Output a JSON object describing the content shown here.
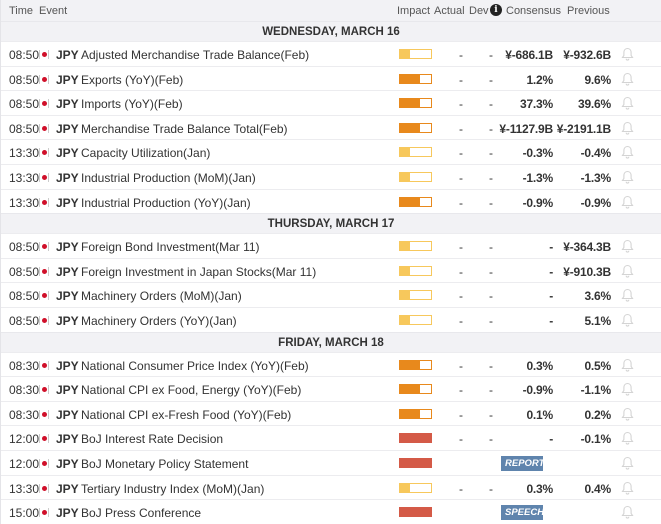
{
  "header": {
    "time": "Time",
    "event": "Event",
    "impact": "Impact",
    "actual": "Actual",
    "dev": "Dev",
    "consensus": "Consensus",
    "previous": "Previous",
    "info_icon": "info-icon"
  },
  "colors": {
    "low": "#f7c85c",
    "medium": "#e8891c",
    "high": "#d45a47",
    "tag": "#5f84ad"
  },
  "days": [
    {
      "label": "WEDNESDAY, MARCH 16",
      "events": [
        {
          "time": "08:50",
          "currency": "JPY",
          "name": "Adjusted Merchandise Trade Balance(Feb)",
          "impact": "low",
          "actual": "-",
          "dev": "-",
          "consensus": "¥-686.1B",
          "previous": "¥-932.6B"
        },
        {
          "time": "08:50",
          "currency": "JPY",
          "name": "Exports (YoY)(Feb)",
          "impact": "medium",
          "actual": "-",
          "dev": "-",
          "consensus": "1.2%",
          "previous": "9.6%"
        },
        {
          "time": "08:50",
          "currency": "JPY",
          "name": "Imports (YoY)(Feb)",
          "impact": "medium",
          "actual": "-",
          "dev": "-",
          "consensus": "37.3%",
          "previous": "39.6%"
        },
        {
          "time": "08:50",
          "currency": "JPY",
          "name": "Merchandise Trade Balance Total(Feb)",
          "impact": "medium",
          "actual": "-",
          "dev": "-",
          "consensus": "¥-1127.9B",
          "previous": "¥-2191.1B"
        },
        {
          "time": "13:30",
          "currency": "JPY",
          "name": "Capacity Utilization(Jan)",
          "impact": "low",
          "actual": "-",
          "dev": "-",
          "consensus": "-0.3%",
          "previous": "-0.4%"
        },
        {
          "time": "13:30",
          "currency": "JPY",
          "name": "Industrial Production (MoM)(Jan)",
          "impact": "low",
          "actual": "-",
          "dev": "-",
          "consensus": "-1.3%",
          "previous": "-1.3%"
        },
        {
          "time": "13:30",
          "currency": "JPY",
          "name": "Industrial Production (YoY)(Jan)",
          "impact": "medium",
          "actual": "-",
          "dev": "-",
          "consensus": "-0.9%",
          "previous": "-0.9%"
        }
      ]
    },
    {
      "label": "THURSDAY, MARCH 17",
      "events": [
        {
          "time": "08:50",
          "currency": "JPY",
          "name": "Foreign Bond Investment(Mar 11)",
          "impact": "low",
          "actual": "-",
          "dev": "-",
          "consensus": "-",
          "previous": "¥-364.3B"
        },
        {
          "time": "08:50",
          "currency": "JPY",
          "name": "Foreign Investment in Japan Stocks(Mar 11)",
          "impact": "low",
          "actual": "-",
          "dev": "-",
          "consensus": "-",
          "previous": "¥-910.3B"
        },
        {
          "time": "08:50",
          "currency": "JPY",
          "name": "Machinery Orders (MoM)(Jan)",
          "impact": "low",
          "actual": "-",
          "dev": "-",
          "consensus": "-",
          "previous": "3.6%"
        },
        {
          "time": "08:50",
          "currency": "JPY",
          "name": "Machinery Orders (YoY)(Jan)",
          "impact": "low",
          "actual": "-",
          "dev": "-",
          "consensus": "-",
          "previous": "5.1%"
        }
      ]
    },
    {
      "label": "FRIDAY, MARCH 18",
      "events": [
        {
          "time": "08:30",
          "currency": "JPY",
          "name": "National Consumer Price Index (YoY)(Feb)",
          "impact": "medium",
          "actual": "-",
          "dev": "-",
          "consensus": "0.3%",
          "previous": "0.5%"
        },
        {
          "time": "08:30",
          "currency": "JPY",
          "name": "National CPI ex Food, Energy (YoY)(Feb)",
          "impact": "medium",
          "actual": "-",
          "dev": "-",
          "consensus": "-0.9%",
          "previous": "-1.1%"
        },
        {
          "time": "08:30",
          "currency": "JPY",
          "name": "National CPI ex-Fresh Food (YoY)(Feb)",
          "impact": "medium",
          "actual": "-",
          "dev": "-",
          "consensus": "0.1%",
          "previous": "0.2%"
        },
        {
          "time": "12:00",
          "currency": "JPY",
          "name": "BoJ Interest Rate Decision",
          "impact": "high",
          "actual": "-",
          "dev": "-",
          "consensus": "-",
          "previous": "-0.1%"
        },
        {
          "time": "12:00",
          "currency": "JPY",
          "name": "BoJ Monetary Policy Statement",
          "impact": "high",
          "tag": "REPORT"
        },
        {
          "time": "13:30",
          "currency": "JPY",
          "name": "Tertiary Industry Index (MoM)(Jan)",
          "impact": "low",
          "actual": "-",
          "dev": "-",
          "consensus": "0.3%",
          "previous": "0.4%"
        },
        {
          "time": "15:00",
          "currency": "JPY",
          "name": "BoJ Press Conference",
          "impact": "high",
          "tag": "SPEECH"
        }
      ]
    }
  ]
}
